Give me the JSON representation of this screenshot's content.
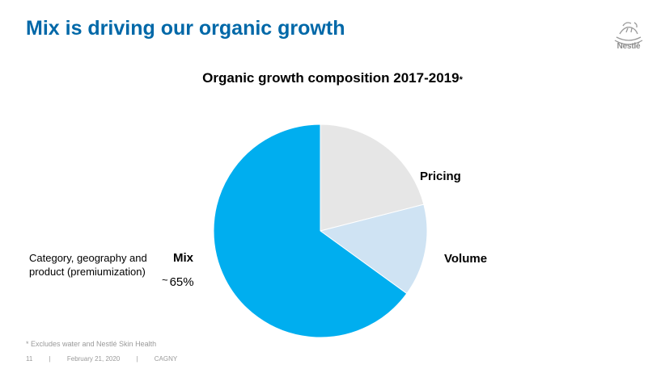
{
  "header": {
    "title": "Mix is driving our organic growth",
    "logo_text": "Nestlé"
  },
  "chart_data": {
    "type": "pie",
    "title": "Organic growth composition 2017-2019",
    "title_marker": "*",
    "slices": [
      {
        "label": "Pricing",
        "value": 21,
        "color": "#e6e6e6"
      },
      {
        "label": "Volume",
        "value": 14,
        "color": "#cfe3f3"
      },
      {
        "label": "Mix",
        "value": 65,
        "color": "#00aeef"
      }
    ],
    "annotations": {
      "mix_description_line1": "Category, geography and",
      "mix_description_line2": "product (premiumization)",
      "mix_tilde": "~",
      "mix_value": "65%"
    }
  },
  "footnote": "* Excludes water and Nestlé Skin Health",
  "footer": {
    "page": "11",
    "separator": "|",
    "date": "February 21, 2020",
    "event": "CAGNY"
  }
}
